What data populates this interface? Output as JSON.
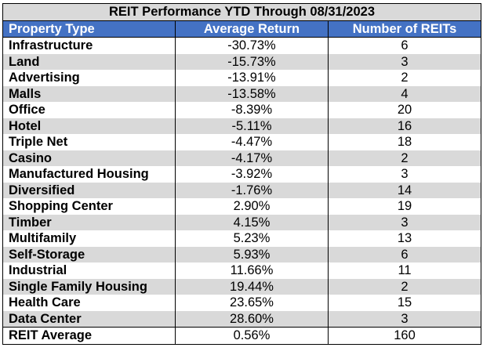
{
  "title": "REIT Performance YTD Through 08/31/2023",
  "headers": [
    "Property Type",
    "Average Return",
    "Number of REITs"
  ],
  "rows": [
    {
      "type": "Infrastructure",
      "return": "-30.73%",
      "count": "6"
    },
    {
      "type": "Land",
      "return": "-15.73%",
      "count": "3"
    },
    {
      "type": "Advertising",
      "return": "-13.91%",
      "count": "2"
    },
    {
      "type": "Malls",
      "return": "-13.58%",
      "count": "4"
    },
    {
      "type": "Office",
      "return": "-8.39%",
      "count": "20"
    },
    {
      "type": "Hotel",
      "return": "-5.11%",
      "count": "16"
    },
    {
      "type": "Triple Net",
      "return": "-4.47%",
      "count": "18"
    },
    {
      "type": "Casino",
      "return": "-4.17%",
      "count": "2"
    },
    {
      "type": "Manufactured Housing",
      "return": "-3.92%",
      "count": "3"
    },
    {
      "type": "Diversified",
      "return": "-1.76%",
      "count": "14"
    },
    {
      "type": "Shopping Center",
      "return": "2.90%",
      "count": "19"
    },
    {
      "type": "Timber",
      "return": "4.15%",
      "count": "3"
    },
    {
      "type": "Multifamily",
      "return": "5.23%",
      "count": "13"
    },
    {
      "type": "Self-Storage",
      "return": "5.93%",
      "count": "6"
    },
    {
      "type": "Industrial",
      "return": "11.66%",
      "count": "11"
    },
    {
      "type": "Single Family Housing",
      "return": "19.44%",
      "count": "2"
    },
    {
      "type": "Health Care",
      "return": "23.65%",
      "count": "15"
    },
    {
      "type": "Data Center",
      "return": "28.60%",
      "count": "3"
    }
  ],
  "footer": {
    "type": "REIT Average",
    "return": "0.56%",
    "count": "160"
  },
  "colors": {
    "header_bg": "#4472c4",
    "title_bg": "#d9d9d9",
    "stripe_bg": "#d9d9d9",
    "header_text": "#ffffff"
  }
}
